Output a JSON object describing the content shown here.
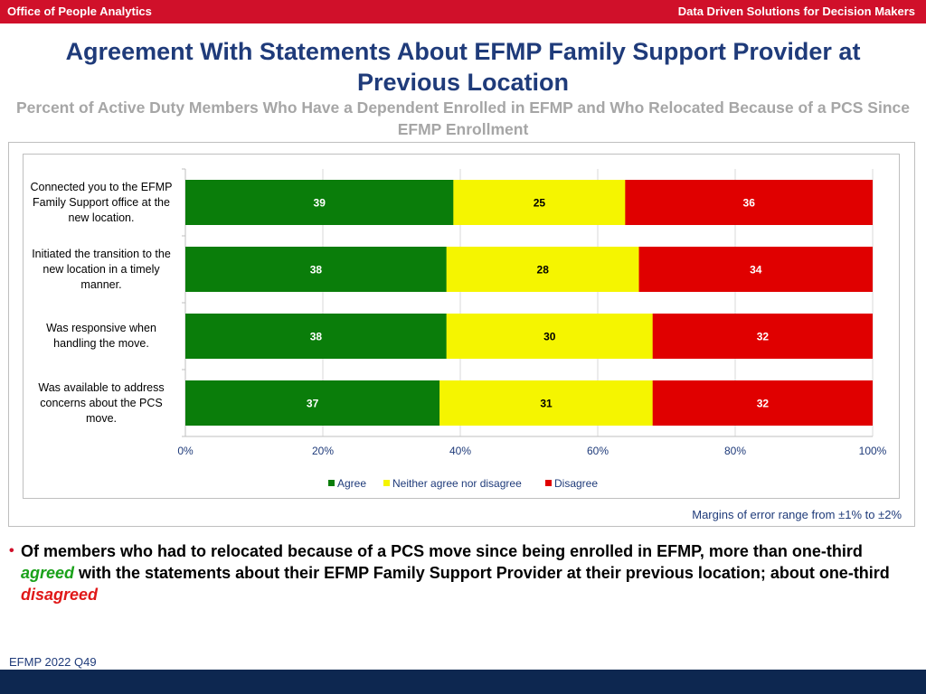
{
  "header": {
    "left": "Office of People Analytics",
    "right": "Data Driven Solutions for Decision Makers"
  },
  "title": "Agreement With Statements About EFMP Family Support Provider at Previous Location",
  "subtitle": "Percent of Active Duty Members Who Have a Dependent Enrolled in EFMP and Who Relocated Because of a PCS Since EFMP Enrollment",
  "margin_note": "Margins of error range from ±1% to ±2%",
  "bullet": {
    "part1": "Of members who had to relocated because of a PCS move since being enrolled in EFMP, more than one-third",
    "agreed": "agreed",
    "part2": "with the statements about their EFMP Family Support Provider at their previous location; about one-third",
    "disagreed": "disagreed"
  },
  "source": "EFMP 2022 Q49",
  "colors": {
    "agree": "#0a7d0a",
    "neither": "#f5f500",
    "disagree": "#e00000",
    "header_red": "#d0102a",
    "title_blue": "#1f3b7a",
    "footer_navy": "#0d2750"
  },
  "chart_data": {
    "type": "bar",
    "orientation": "horizontal",
    "stacked": true,
    "categories": [
      "Connected you to the EFMP Family Support office at the new location.",
      "Initiated the transition to the new location in a timely manner.",
      "Was responsive when handling the move.",
      "Was available to address concerns about the PCS move."
    ],
    "series": [
      {
        "name": "Agree",
        "values": [
          39,
          38,
          38,
          37
        ]
      },
      {
        "name": "Neither agree nor disagree",
        "values": [
          25,
          28,
          30,
          31
        ]
      },
      {
        "name": "Disagree",
        "values": [
          36,
          34,
          32,
          32
        ]
      }
    ],
    "xlim": [
      0,
      100
    ],
    "xticks": [
      "0%",
      "20%",
      "40%",
      "60%",
      "80%",
      "100%"
    ],
    "grid": true,
    "legend_position": "bottom"
  }
}
